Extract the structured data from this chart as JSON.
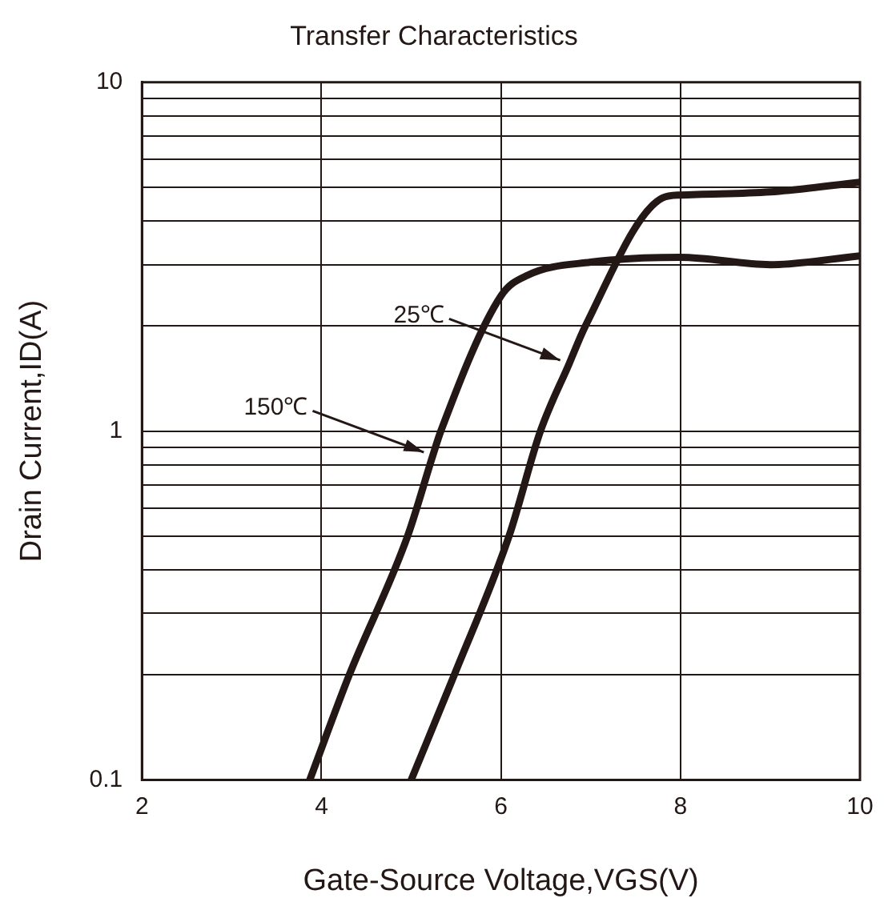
{
  "chart_data": {
    "type": "line",
    "title": "Transfer Characteristics",
    "xlabel": "Gate-Source Voltage,VGS(V)",
    "ylabel": "Drain Current,ID(A)",
    "log": "y",
    "grid": true,
    "legend": false,
    "marker": "none",
    "line_style": "solid",
    "xlim": [
      2,
      10
    ],
    "xticks": [
      2,
      4,
      6,
      8,
      10
    ],
    "ylim": [
      0.1,
      10
    ],
    "yticks": [
      0.1,
      {
        "value": 0.2,
        "label": null
      },
      {
        "value": 0.3,
        "label": null
      },
      {
        "value": 0.4,
        "label": null
      },
      {
        "value": 0.5,
        "label": null
      },
      {
        "value": 0.6,
        "label": null
      },
      {
        "value": 0.7,
        "label": null
      },
      {
        "value": 0.8,
        "label": null
      },
      {
        "value": 0.9,
        "label": null
      },
      1,
      {
        "value": 2,
        "label": null
      },
      {
        "value": 3,
        "label": null
      },
      {
        "value": 4,
        "label": null
      },
      {
        "value": 5,
        "label": null
      },
      {
        "value": 6,
        "label": null
      },
      {
        "value": 7,
        "label": null
      },
      {
        "value": 8,
        "label": null
      },
      {
        "value": 9,
        "label": null
      },
      10
    ],
    "series": [
      {
        "color": "#231815",
        "x": [
          3.87,
          4.31,
          4.96,
          5.24,
          5.33,
          6.0,
          6.3,
          7.0,
          8.0,
          9.0,
          10.0
        ],
        "values": [
          0.1,
          0.2,
          0.5,
          0.85,
          1.0,
          2.44,
          2.8,
          3.05,
          3.15,
          3.0,
          3.18
        ]
      },
      {
        "color": "#231815",
        "x": [
          5.0,
          5.48,
          6.09,
          6.44,
          6.76,
          6.94,
          7.8,
          8.0,
          9.0,
          10.0
        ],
        "values": [
          0.1,
          0.2,
          0.5,
          1.0,
          1.56,
          2.0,
          4.66,
          4.75,
          4.85,
          5.17
        ]
      }
    ],
    "annotations": [
      {
        "text": "25℃",
        "x": 6.76,
        "y": 1.56
      },
      {
        "text": "150℃",
        "x": 5.24,
        "y": 0.85
      }
    ]
  }
}
